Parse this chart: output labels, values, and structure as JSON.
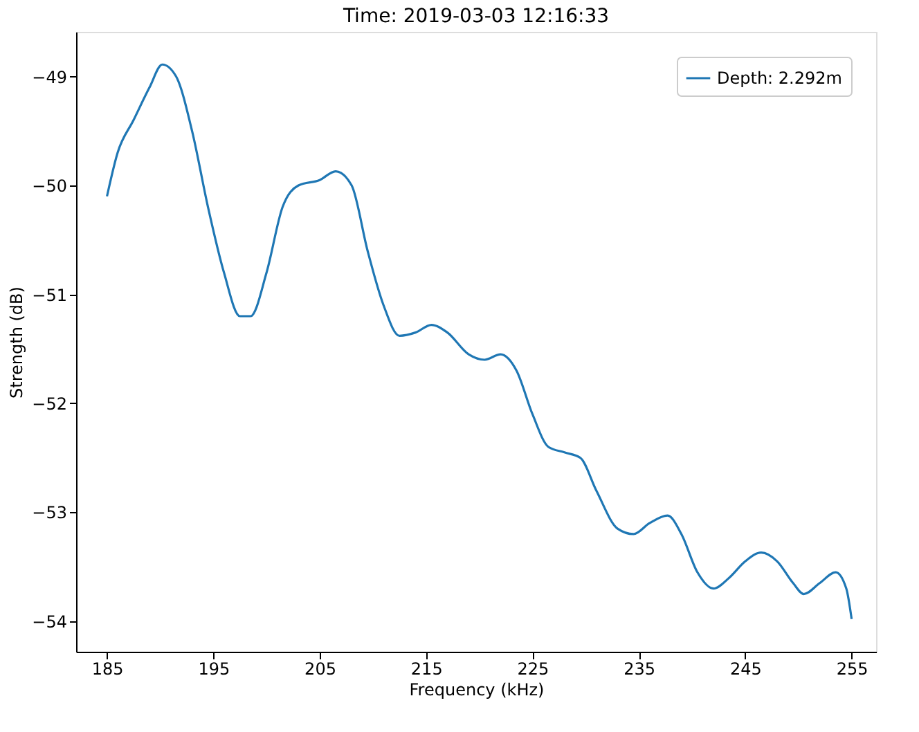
{
  "chart_data": {
    "type": "line",
    "title": "Time: 2019-03-03 12:16:33",
    "xlabel": "Frequency (kHz)",
    "ylabel": "Strength (dB)",
    "x": [
      185,
      186,
      187.5,
      189,
      190.2,
      191.5,
      193,
      194.5,
      196,
      197.5,
      198.5,
      200,
      201.5,
      203,
      205,
      206.5,
      208,
      209.5,
      211,
      212.5,
      214,
      215.5,
      217,
      219,
      220.5,
      222,
      223.5,
      225,
      226.5,
      228,
      229.5,
      231,
      233,
      234.5,
      236,
      237.7,
      239,
      240.5,
      242,
      243.5,
      245,
      246.5,
      248,
      249.5,
      250.5,
      252,
      253.5,
      254.5,
      255
    ],
    "series": [
      {
        "name": "Depth: 2.292m",
        "color": "#1f77b4",
        "values": [
          -50.1,
          -49.7,
          -49.4,
          -49.1,
          -48.89,
          -49.0,
          -49.5,
          -50.2,
          -50.8,
          -51.2,
          -51.2,
          -50.8,
          -50.2,
          -50.0,
          -49.95,
          -49.87,
          -50.0,
          -50.6,
          -51.1,
          -51.38,
          -51.35,
          -51.28,
          -51.35,
          -51.55,
          -51.6,
          -51.55,
          -51.7,
          -52.1,
          -52.4,
          -52.45,
          -52.5,
          -52.8,
          -53.15,
          -53.2,
          -53.1,
          -53.03,
          -53.2,
          -53.55,
          -53.7,
          -53.6,
          -53.45,
          -53.37,
          -53.45,
          -53.65,
          -53.75,
          -53.65,
          -53.55,
          -53.7,
          -53.98
        ]
      }
    ],
    "xlim": [
      182.1,
      257.3
    ],
    "ylim": [
      -54.28,
      -48.59
    ],
    "xticks": [
      185,
      195,
      205,
      215,
      225,
      235,
      245,
      255
    ],
    "yticks": [
      -54,
      -53,
      -52,
      -51,
      -50,
      -49
    ],
    "grid": false,
    "legend": "top right",
    "marker": "none",
    "line_style": "solid"
  }
}
